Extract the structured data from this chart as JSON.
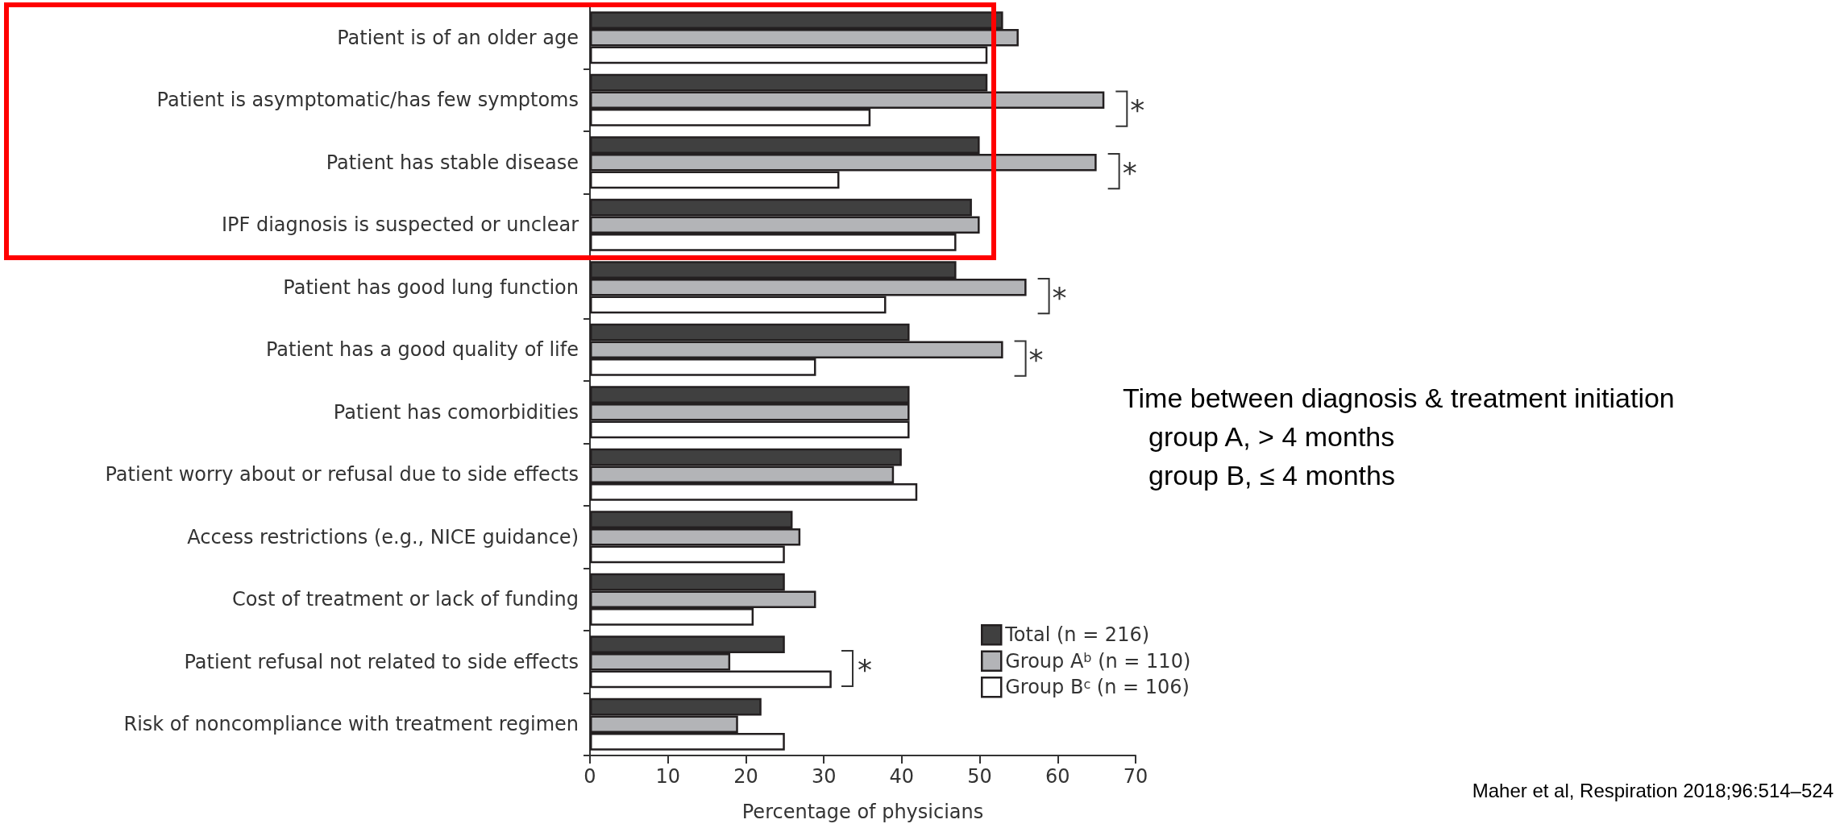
{
  "chart_data": {
    "type": "bar",
    "orientation": "horizontal",
    "xlabel": "Percentage of physicians",
    "categories": [
      "Patient is of an older age",
      "Patient is asymptomatic/has few symptoms",
      "Patient has stable disease",
      "IPF diagnosis is suspected or unclear",
      "Patient has good lung function",
      "Patient has a good quality of life",
      "Patient has comorbidities",
      "Patient worry about or refusal due to side effects",
      "Access restrictions (e.g., NICE guidance)",
      "Cost of treatment or lack of funding",
      "Patient refusal not related to side effects",
      "Risk of noncompliance with treatment regimen"
    ],
    "series": [
      {
        "name": "Total (n = 216)",
        "color": "#404040",
        "values": [
          53,
          51,
          50,
          49,
          47,
          41,
          41,
          40,
          26,
          25,
          25,
          22
        ]
      },
      {
        "name": "Group A$^{b}$ (n = 110)",
        "color": "#b3b4b7",
        "values": [
          55,
          66,
          65,
          50,
          56,
          53,
          41,
          39,
          27,
          29,
          18,
          19
        ]
      },
      {
        "name": "Group B$^{c}$ (n = 106)",
        "color": "#ffffff",
        "values": [
          51,
          36,
          32,
          47,
          38,
          29,
          41,
          42,
          25,
          21,
          31,
          25
        ]
      }
    ],
    "xlim": [
      0,
      70
    ],
    "xticks": [
      0,
      10,
      20,
      30,
      40,
      50,
      60,
      70
    ],
    "grid": false,
    "legend": "bottom right",
    "annotations": [
      {
        "text": "*",
        "x": 66,
        "y": "Patient is asymptomatic/has few symptoms"
      },
      {
        "text": "*",
        "x": 65,
        "y": "Patient has stable disease"
      },
      {
        "text": "*",
        "x": 56,
        "y": "Patient has good lung function"
      },
      {
        "text": "*",
        "x": 53,
        "y": "Patient has a good quality of life"
      },
      "*",
      "Time between diagnosis & treatment initiation",
      "group A, > 4 months",
      "group B, ≤ 4 months",
      "Maher et al, Respiration 2018;96:514–524"
    ]
  }
}
